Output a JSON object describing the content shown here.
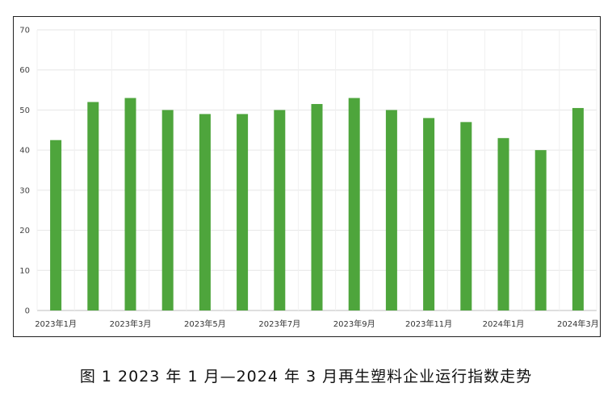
{
  "caption": "图 1  2023 年 1 月—2024 年 3 月再生塑料企业运行指数走势",
  "chart_data": {
    "type": "bar",
    "categories": [
      "2023年1月",
      "2023年2月",
      "2023年3月",
      "2023年4月",
      "2023年5月",
      "2023年6月",
      "2023年7月",
      "2023年8月",
      "2023年9月",
      "2023年10月",
      "2023年11月",
      "2023年12月",
      "2024年1月",
      "2024年2月",
      "2024年3月"
    ],
    "x_tick_labels": [
      "2023年1月",
      "",
      "2023年3月",
      "",
      "2023年5月",
      "",
      "2023年7月",
      "",
      "2023年9月",
      "",
      "2023年11月",
      "",
      "2024年1月",
      "",
      "2024年3月"
    ],
    "values": [
      42.5,
      52,
      53,
      50,
      49,
      49,
      50,
      51.5,
      53,
      50,
      48,
      47,
      43,
      40,
      50.5
    ],
    "ylim": [
      0,
      70
    ],
    "yticks": [
      0,
      10,
      20,
      30,
      40,
      50,
      60,
      70
    ],
    "title": "",
    "xlabel": "",
    "ylabel": "",
    "grid": "on",
    "legend": "none",
    "bar_color": "#4ea53c"
  }
}
